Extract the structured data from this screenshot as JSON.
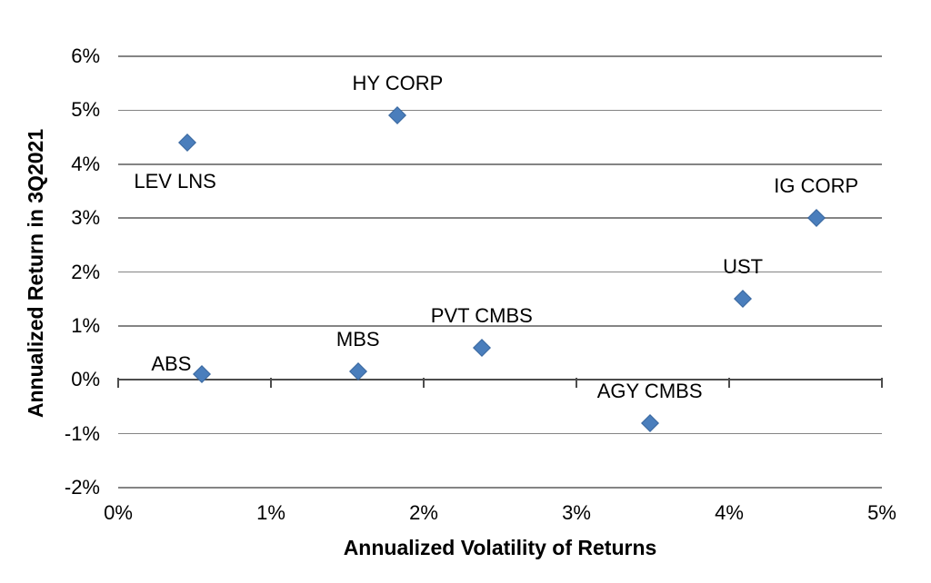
{
  "chart_data": {
    "type": "scatter",
    "title": "",
    "xlabel": "Annualized Volatility of Returns",
    "ylabel": "Annualized Return in 3Q2021",
    "xlim": [
      0,
      5
    ],
    "ylim": [
      -2,
      6
    ],
    "x_ticks": [
      0,
      1,
      2,
      3,
      4,
      5
    ],
    "y_ticks": [
      -2,
      -1,
      0,
      1,
      2,
      3,
      4,
      5,
      6
    ],
    "x_tick_suffix": "%",
    "y_tick_suffix": "%",
    "grid": "horizontal-only",
    "legend": "none",
    "marker": "diamond",
    "colors": {
      "marker_fill": "#4a7ebc",
      "marker_edge": "#3a679e",
      "gridline": "#848484",
      "axis_line": "#4d4d4d",
      "text": "#000000",
      "background": "#ffffff"
    },
    "points": [
      {
        "label": "LEV LNS",
        "x": 0.45,
        "y": 4.4,
        "label_position": "below"
      },
      {
        "label": "HY CORP",
        "x": 1.83,
        "y": 4.9,
        "label_position": "above"
      },
      {
        "label": "IG CORP",
        "x": 4.57,
        "y": 3.0,
        "label_position": "above"
      },
      {
        "label": "UST",
        "x": 4.09,
        "y": 1.5,
        "label_position": "above"
      },
      {
        "label": "PVT CMBS",
        "x": 2.38,
        "y": 0.6,
        "label_position": "above"
      },
      {
        "label": "MBS",
        "x": 1.57,
        "y": 0.15,
        "label_position": "above"
      },
      {
        "label": "ABS",
        "x": 0.55,
        "y": 0.1,
        "label_position": "left"
      },
      {
        "label": "AGY CMBS",
        "x": 3.48,
        "y": -0.8,
        "label_position": "above"
      }
    ]
  }
}
